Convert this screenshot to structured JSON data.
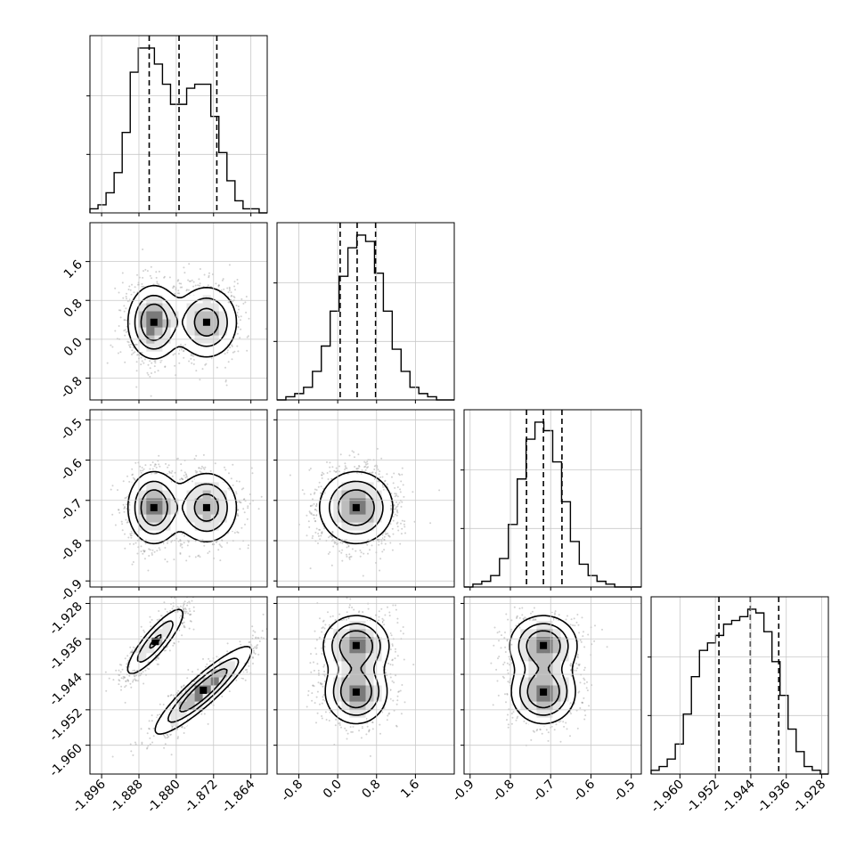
{
  "colors": {
    "hist": "#000000",
    "grid": "#c8c8c8",
    "point": "#9a9a9a",
    "contour": "#000000",
    "frame": "#000000"
  },
  "chart_data": {
    "type": "corner",
    "title": "",
    "grid": true,
    "parameters": [
      {
        "index": 0,
        "range": [
          -1.8985,
          -1.8605
        ],
        "ticks": [
          "-1.896",
          "-1.888",
          "-1.880",
          "-1.872",
          "-1.864"
        ],
        "tick_values": [
          -1.896,
          -1.888,
          -1.88,
          -1.872,
          -1.864
        ],
        "quantiles": [
          -1.8858,
          -1.8794,
          -1.8713
        ],
        "modes": [
          {
            "mu": -1.885,
            "sd": 0.0025,
            "w": 0.5
          },
          {
            "mu": -1.873,
            "sd": 0.0032,
            "w": 0.5
          }
        ]
      },
      {
        "index": 1,
        "range": [
          -1.25,
          2.4
        ],
        "ticks": [
          "-0.8",
          "0.0",
          "0.8",
          "1.6"
        ],
        "tick_values": [
          -0.8,
          0.0,
          0.8,
          1.6
        ],
        "quantiles": [
          0.05,
          0.4,
          0.78
        ],
        "modes": [
          {
            "mu": 0.4,
            "sd": 0.38,
            "w": 1
          }
        ]
      },
      {
        "index": 2,
        "range": [
          -0.915,
          -0.475
        ],
        "ticks": [
          "-0.9",
          "-0.8",
          "-0.7",
          "-0.6",
          "-0.5"
        ],
        "tick_values": [
          -0.9,
          -0.8,
          -0.7,
          -0.6,
          -0.5
        ],
        "quantiles": [
          -0.76,
          -0.718,
          -0.672
        ],
        "modes": [
          {
            "mu": -0.718,
            "sd": 0.045,
            "w": 1
          }
        ]
      },
      {
        "index": 3,
        "range": [
          -1.9665,
          -1.9265
        ],
        "ticks": [
          "-1.960",
          "-1.952",
          "-1.944",
          "-1.936",
          "-1.928"
        ],
        "tick_values": [
          -1.96,
          -1.952,
          -1.944,
          -1.936,
          -1.928
        ],
        "quantiles": [
          -1.9512,
          -1.9441,
          -1.9377
        ],
        "modes": [
          {
            "mu": -1.9445,
            "sd": 0.0055,
            "w": 1
          }
        ]
      }
    ],
    "histograms": [
      {
        "param": 0,
        "bin_edges_range": [
          -1.8985,
          -1.8605
        ],
        "counts": [
          1,
          2,
          5,
          10,
          20,
          35,
          41,
          41,
          37,
          32,
          27,
          27,
          31,
          32,
          32,
          24,
          15,
          8,
          3,
          1,
          1,
          0
        ]
      },
      {
        "param": 1,
        "bin_edges_range": [
          -1.25,
          2.4
        ],
        "counts": [
          0,
          1,
          2,
          4,
          9,
          17,
          28,
          39,
          48,
          52,
          50,
          40,
          28,
          16,
          9,
          4,
          2,
          1,
          0,
          0
        ]
      },
      {
        "param": 2,
        "bin_edges_range": [
          -0.915,
          -0.475
        ],
        "counts": [
          0,
          1,
          2,
          4,
          10,
          22,
          38,
          52,
          58,
          55,
          44,
          30,
          16,
          8,
          4,
          2,
          1,
          0,
          0,
          0
        ]
      },
      {
        "param": 3,
        "bin_edges_range": [
          -1.9665,
          -1.9265
        ],
        "counts": [
          1,
          2,
          4,
          8,
          16,
          26,
          33,
          35,
          37,
          40,
          41,
          42,
          44,
          43,
          38,
          30,
          21,
          12,
          6,
          2,
          1,
          0
        ]
      }
    ]
  }
}
